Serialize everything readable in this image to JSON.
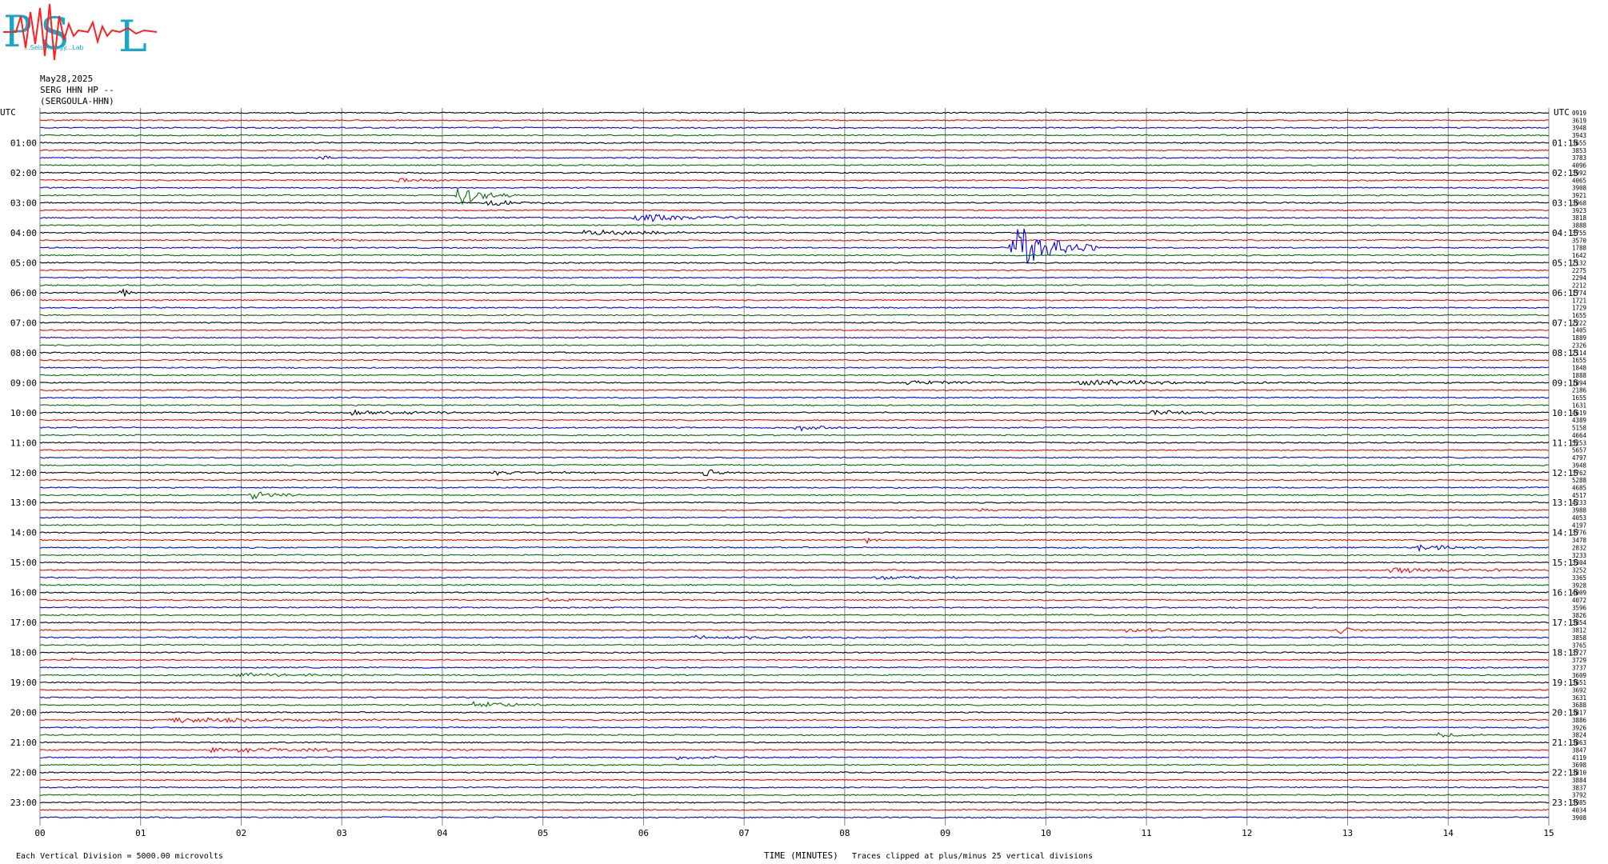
{
  "header": {
    "logo_text": "PSL",
    "logo_subtext": "...Seismology...Lab",
    "date": "May28,2025",
    "station": "SERG HHN HP --",
    "station_name": "(SERGOULA-HHN)"
  },
  "axis": {
    "left_label": "UTC",
    "right_label": "UTC",
    "xlabel": "TIME (MINUTES)",
    "x_ticks": [
      "00",
      "01",
      "02",
      "03",
      "04",
      "05",
      "06",
      "07",
      "08",
      "09",
      "10",
      "11",
      "12",
      "13",
      "14",
      "15"
    ]
  },
  "footer": {
    "scale_note": "Each Vertical Division = 5000.00 microvolts",
    "clip_note": "Traces clipped at plus/minus 25 vertical divisions"
  },
  "colors": {
    "trace_cycle": [
      "#000000",
      "#ff0000",
      "#0000ff",
      "#007000"
    ],
    "grid": "#808080"
  },
  "chart_data": {
    "type": "line",
    "title": "",
    "x_range": [
      0,
      15
    ],
    "traces_per_hour": 4,
    "minutes_per_trace": 15,
    "left_hour_labels": [
      "01:00",
      "02:00",
      "03:00",
      "04:00",
      "05:00",
      "06:00",
      "07:00",
      "08:00",
      "09:00",
      "10:00",
      "11:00",
      "12:00",
      "13:00",
      "14:00",
      "15:00",
      "16:00",
      "17:00",
      "18:00",
      "19:00",
      "20:00",
      "21:00",
      "22:00",
      "23:00"
    ],
    "right_hour_labels": [
      "01:15",
      "02:15",
      "03:15",
      "04:15",
      "05:15",
      "06:15",
      "07:15",
      "08:15",
      "09:15",
      "10:15",
      "11:15",
      "12:15",
      "13:15",
      "14:15",
      "15:15",
      "16:15",
      "17:15",
      "18:15",
      "19:15",
      "20:15",
      "21:15",
      "22:15",
      "23:15"
    ],
    "trace_values": [
      "0919",
      "3619",
      "3948",
      "3943",
      "3655",
      "3853",
      "3783",
      "4096",
      "3992",
      "4065",
      "3908",
      "3921",
      "3968",
      "3923",
      "3818",
      "3888",
      "3755",
      "3570",
      "1788",
      "1642",
      "2132",
      "2275",
      "2294",
      "2212",
      "1774",
      "1721",
      "1729",
      "1655",
      "2222",
      "1405",
      "1889",
      "2326",
      "2114",
      "1655",
      "1848",
      "1888",
      "1894",
      "2186",
      "1655",
      "1631",
      "4619",
      "4389",
      "5158",
      "4664",
      "5253",
      "5657",
      "4797",
      "3948",
      "3762",
      "5288",
      "4685",
      "4517",
      "4233",
      "3988",
      "4053",
      "4197",
      "3776",
      "3478",
      "2832",
      "3233",
      "3304",
      "3252",
      "3365",
      "3928",
      "4009",
      "4072",
      "3596",
      "3826",
      "3854",
      "3812",
      "3858",
      "3765",
      "3727",
      "3729",
      "3737",
      "3609",
      "3651",
      "3692",
      "3631",
      "3688",
      "3817",
      "3886",
      "3926",
      "3824",
      "3863",
      "3847",
      "4119",
      "3698",
      "3810",
      "3884",
      "3837",
      "3792",
      "3985",
      "4034",
      "3908"
    ],
    "events": [
      {
        "row": 11,
        "minute": 4.15,
        "amp": 4.5,
        "dur": 0.25
      },
      {
        "row": 18,
        "minute": 9.65,
        "amp": 12,
        "dur": 0.35
      },
      {
        "row": 9,
        "minute": 3.5,
        "amp": 1.2,
        "dur": 0.3
      },
      {
        "row": 12,
        "minute": 4.4,
        "amp": 1.5,
        "dur": 0.35
      },
      {
        "row": 6,
        "minute": 2.75,
        "amp": 1.3,
        "dur": 0.15
      },
      {
        "row": 14,
        "minute": 5.9,
        "amp": 1.8,
        "dur": 0.6
      },
      {
        "row": 16,
        "minute": 5.4,
        "amp": 1.2,
        "dur": 0.7
      },
      {
        "row": 17,
        "minute": 2.9,
        "amp": 0.8,
        "dur": 0.2
      },
      {
        "row": 24,
        "minute": 0.8,
        "amp": 2.5,
        "dur": 0.08
      },
      {
        "row": 36,
        "minute": 10.3,
        "amp": 1.2,
        "dur": 1.2
      },
      {
        "row": 36,
        "minute": 8.6,
        "amp": 0.7,
        "dur": 1.2
      },
      {
        "row": 40,
        "minute": 3.1,
        "amp": 1.0,
        "dur": 0.8
      },
      {
        "row": 40,
        "minute": 11.0,
        "amp": 1.3,
        "dur": 0.5
      },
      {
        "row": 42,
        "minute": 7.5,
        "amp": 1.2,
        "dur": 0.4
      },
      {
        "row": 48,
        "minute": 6.6,
        "amp": 2.0,
        "dur": 0.15
      },
      {
        "row": 48,
        "minute": 4.5,
        "amp": 0.9,
        "dur": 0.6
      },
      {
        "row": 51,
        "minute": 2.1,
        "amp": 2.0,
        "dur": 0.25
      },
      {
        "row": 53,
        "minute": 9.3,
        "amp": 0.8,
        "dur": 0.2
      },
      {
        "row": 57,
        "minute": 8.2,
        "amp": 1.5,
        "dur": 0.1
      },
      {
        "row": 58,
        "minute": 13.7,
        "amp": 1.8,
        "dur": 0.3
      },
      {
        "row": 61,
        "minute": 13.4,
        "amp": 1.2,
        "dur": 0.9
      },
      {
        "row": 62,
        "minute": 8.3,
        "amp": 0.9,
        "dur": 0.8
      },
      {
        "row": 65,
        "minute": 5.0,
        "amp": 0.8,
        "dur": 0.4
      },
      {
        "row": 69,
        "minute": 12.9,
        "amp": 1.6,
        "dur": 0.2
      },
      {
        "row": 69,
        "minute": 10.8,
        "amp": 0.8,
        "dur": 0.7
      },
      {
        "row": 70,
        "minute": 6.5,
        "amp": 0.8,
        "dur": 1.2
      },
      {
        "row": 73,
        "minute": 0.3,
        "amp": 1.3,
        "dur": 0.05
      },
      {
        "row": 75,
        "minute": 1.9,
        "amp": 0.8,
        "dur": 0.9
      },
      {
        "row": 79,
        "minute": 4.3,
        "amp": 2.0,
        "dur": 0.35
      },
      {
        "row": 81,
        "minute": 1.3,
        "amp": 1.2,
        "dur": 1.2
      },
      {
        "row": 83,
        "minute": 13.9,
        "amp": 1.2,
        "dur": 0.25
      },
      {
        "row": 85,
        "minute": 1.7,
        "amp": 1.0,
        "dur": 1.6
      },
      {
        "row": 86,
        "minute": 6.3,
        "amp": 0.8,
        "dur": 0.6
      },
      {
        "row": 95,
        "minute": 9.35,
        "amp": 1.0,
        "dur": 0.1
      }
    ]
  }
}
